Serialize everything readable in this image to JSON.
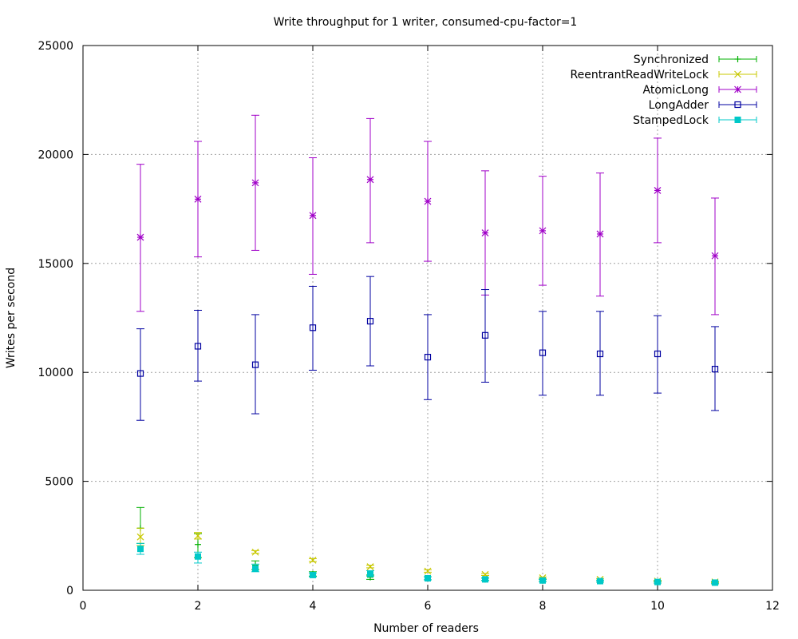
{
  "chart_data": {
    "type": "scatter",
    "title": "Write throughput for 1 writer, consumed-cpu-factor=1",
    "xlabel": "Number of readers",
    "ylabel": "Writes per second",
    "xlim": [
      0,
      12
    ],
    "ylim": [
      0,
      25000
    ],
    "x_ticks": [
      "0",
      "2",
      "4",
      "6",
      "8",
      "10",
      "12"
    ],
    "y_ticks": [
      "0",
      "5000",
      "10000",
      "15000",
      "20000",
      "25000"
    ],
    "grid": true,
    "legend_position": "top-right",
    "error_bars": true,
    "x": [
      1,
      2,
      3,
      4,
      5,
      6,
      7,
      8,
      9,
      10,
      11
    ],
    "series": [
      {
        "name": "Synchronized",
        "color": "#00b000",
        "marker": "plus",
        "values": [
          2850,
          2100,
          1150,
          750,
          600,
          550,
          500,
          450,
          420,
          380,
          350
        ],
        "err_low": [
          2150,
          1500,
          950,
          650,
          500,
          480,
          450,
          400,
          380,
          330,
          300
        ],
        "err_high": [
          3800,
          2600,
          1350,
          850,
          700,
          620,
          560,
          500,
          460,
          420,
          400
        ]
      },
      {
        "name": "ReentrantReadWriteLock",
        "color": "#c8c800",
        "marker": "cross",
        "values": [
          2450,
          2500,
          1750,
          1380,
          1080,
          880,
          720,
          570,
          500,
          420,
          380
        ],
        "err_low": [
          2050,
          2350,
          1700,
          1320,
          1030,
          830,
          680,
          530,
          470,
          390,
          350
        ],
        "err_high": [
          2850,
          2650,
          1820,
          1450,
          1150,
          940,
          770,
          610,
          540,
          460,
          420
        ]
      },
      {
        "name": "AtomicLong",
        "color": "#a000c8",
        "marker": "star",
        "values": [
          16200,
          17950,
          18700,
          17200,
          18850,
          17850,
          16400,
          16500,
          16350,
          18350,
          15350
        ],
        "err_low": [
          12800,
          15300,
          15600,
          14500,
          15950,
          15100,
          13550,
          14000,
          13500,
          15950,
          12650
        ],
        "err_high": [
          19550,
          20600,
          21800,
          19850,
          21650,
          20600,
          19250,
          19000,
          19150,
          20750,
          18000
        ]
      },
      {
        "name": "LongAdder",
        "color": "#0000a0",
        "marker": "open-square",
        "values": [
          9950,
          11200,
          10350,
          12050,
          12350,
          10700,
          11700,
          10900,
          10850,
          10850,
          10150
        ],
        "err_low": [
          7800,
          9600,
          8100,
          10100,
          10300,
          8750,
          9550,
          8950,
          8950,
          9050,
          8250
        ],
        "err_high": [
          12000,
          12850,
          12650,
          13950,
          14400,
          12650,
          13800,
          12800,
          12800,
          12600,
          12100
        ]
      },
      {
        "name": "StampedLock",
        "color": "#00c8c8",
        "marker": "filled-square",
        "values": [
          1900,
          1550,
          1000,
          700,
          750,
          550,
          500,
          450,
          420,
          380,
          350
        ],
        "err_low": [
          1650,
          1250,
          850,
          620,
          650,
          480,
          450,
          400,
          380,
          330,
          300
        ],
        "err_high": [
          2150,
          1750,
          1200,
          780,
          900,
          620,
          560,
          500,
          460,
          420,
          400
        ]
      }
    ]
  }
}
